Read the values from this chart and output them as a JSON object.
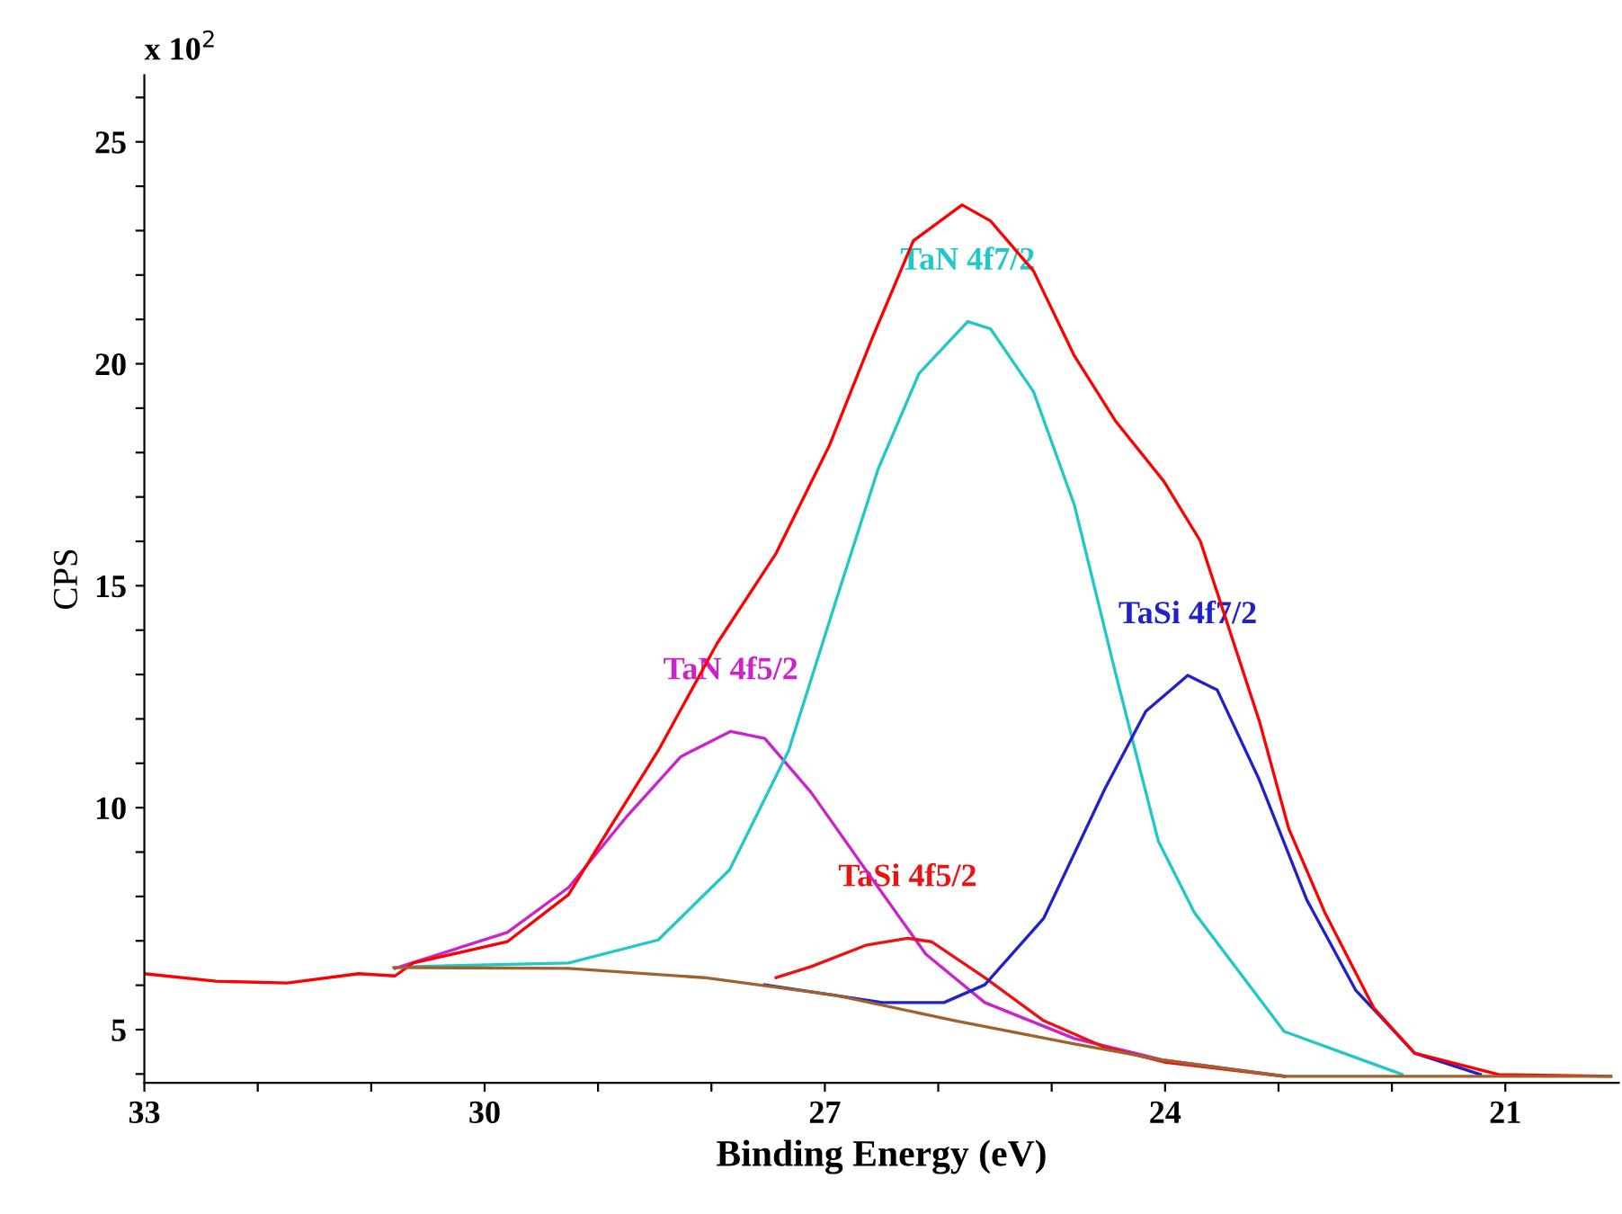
{
  "chart_data": {
    "type": "line",
    "xlabel": "Binding Energy (eV)",
    "ylabel": "CPS",
    "annotations": [
      "x 10$^{2}$"
    ],
    "xlim": [
      33,
      20
    ],
    "ylim": [
      3.8,
      26.5
    ],
    "xticks": [
      33,
      {
        "value": 32,
        "label": null
      },
      {
        "value": 31,
        "label": null
      },
      30,
      {
        "value": 29,
        "label": null
      },
      {
        "value": 28,
        "label": null
      },
      27,
      {
        "value": 26,
        "label": null
      },
      {
        "value": 25,
        "label": null
      },
      24,
      {
        "value": 23,
        "label": null
      },
      {
        "value": 22,
        "label": null
      },
      21
    ],
    "yticks": [
      {
        "value": 4,
        "label": null
      },
      5,
      {
        "value": 6,
        "label": null
      },
      {
        "value": 7,
        "label": null
      },
      {
        "value": 8,
        "label": null
      },
      {
        "value": 9,
        "label": null
      },
      10,
      {
        "value": 11,
        "label": null
      },
      {
        "value": 12,
        "label": null
      },
      {
        "value": 13,
        "label": null
      },
      {
        "value": 14,
        "label": null
      },
      15,
      {
        "value": 16,
        "label": null
      },
      {
        "value": 17,
        "label": null
      },
      {
        "value": 18,
        "label": null
      },
      {
        "value": 19,
        "label": null
      },
      20,
      {
        "value": 21,
        "label": null
      },
      {
        "value": 22,
        "label": null
      },
      {
        "value": 23,
        "label": null
      },
      {
        "value": 24,
        "label": null
      },
      25,
      {
        "value": 26,
        "label": null
      }
    ],
    "grid": false,
    "legend": false,
    "marker": "none",
    "line_style": "solid",
    "series": [
      {
        "name": "TaN 4f5/2",
        "color": "#cc22cc",
        "x": [
          30.79,
          29.8,
          29.26,
          28.74,
          28.27,
          27.83,
          27.53,
          27.12,
          26.64,
          26.11,
          25.59,
          24.8,
          24.01,
          22.95
        ],
        "values": [
          6.38,
          7.19,
          8.2,
          9.82,
          11.15,
          11.72,
          11.56,
          10.34,
          8.6,
          6.7,
          5.61,
          4.8,
          4.31,
          3.95
        ]
      },
      {
        "name": "TaN 4f7/2",
        "color": "#22c8c8",
        "x": [
          30.63,
          29.26,
          28.47,
          27.84,
          27.32,
          26.9,
          26.53,
          26.17,
          25.74,
          25.54,
          25.16,
          24.8,
          24.44,
          24.06,
          23.74,
          22.95,
          21.91
        ],
        "values": [
          6.42,
          6.5,
          7.02,
          8.6,
          11.28,
          14.68,
          17.63,
          19.78,
          20.95,
          20.79,
          19.37,
          16.82,
          13.06,
          9.25,
          7.63,
          4.96,
          3.99
        ]
      },
      {
        "name": "TaSi 4f5/2",
        "color": "#ee1111",
        "x": [
          27.43,
          27.12,
          26.64,
          26.27,
          26.06,
          25.59,
          25.07,
          24.53,
          24.01,
          22.95
        ],
        "values": [
          6.17,
          6.42,
          6.9,
          7.06,
          6.98,
          6.17,
          5.2,
          4.6,
          4.27,
          3.95
        ]
      },
      {
        "name": "TaSi 4f7/2",
        "color": "#2020cc",
        "x": [
          27.53,
          26.49,
          25.95,
          25.59,
          25.07,
          24.53,
          24.17,
          23.8,
          23.54,
          23.17,
          22.75,
          22.32,
          21.8,
          21.22
        ],
        "values": [
          6.01,
          5.61,
          5.61,
          6.01,
          7.51,
          10.43,
          12.17,
          12.98,
          12.65,
          10.63,
          7.92,
          5.89,
          4.47,
          3.99
        ]
      },
      {
        "color": "#ff0000",
        "x": [
          33.0,
          32.37,
          31.74,
          31.11,
          30.79,
          30.63,
          29.8,
          29.26,
          28.9,
          28.47,
          27.95,
          27.43,
          26.96,
          26.58,
          26.22,
          25.79,
          25.54,
          25.16,
          24.8,
          24.44,
          24.01,
          23.69,
          23.17,
          22.91,
          22.59,
          22.16,
          21.8,
          21.06,
          20.07
        ],
        "values": [
          6.26,
          6.09,
          6.05,
          6.26,
          6.21,
          6.5,
          6.98,
          8.04,
          9.53,
          11.28,
          13.7,
          15.73,
          18.16,
          20.59,
          22.77,
          23.58,
          23.22,
          22.09,
          20.18,
          18.72,
          17.35,
          16.01,
          11.96,
          9.53,
          7.63,
          5.49,
          4.47,
          3.99,
          3.95
        ]
      },
      {
        "color": "#a0622d",
        "x": [
          30.8,
          29.26,
          28.06,
          26.9,
          25.85,
          24.8,
          24.01,
          22.95,
          20.07
        ],
        "values": [
          6.4,
          6.38,
          6.17,
          5.77,
          5.2,
          4.68,
          4.31,
          3.95,
          3.95
        ]
      }
    ]
  }
}
